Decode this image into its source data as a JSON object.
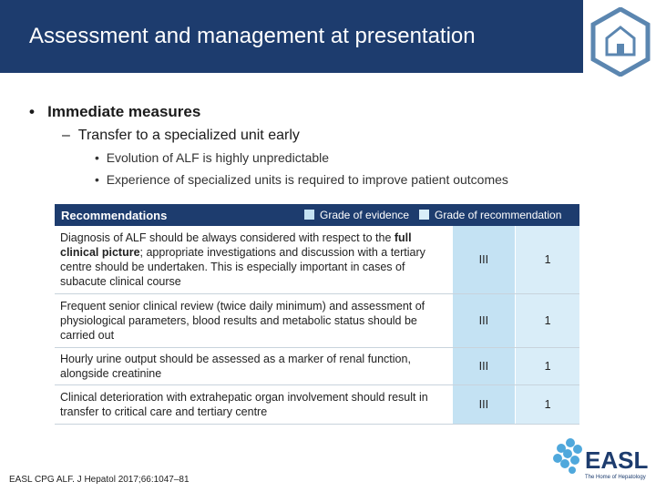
{
  "header": {
    "title": "Assessment and management at presentation"
  },
  "bullets": [
    {
      "text": "Immediate measures",
      "children": [
        {
          "text": "Transfer to a specialized unit early",
          "children": [
            "Evolution of ALF is highly unpredictable",
            "Experience of specialized units is required to improve patient outcomes"
          ]
        }
      ]
    }
  ],
  "table": {
    "header": "Recommendations",
    "legend": [
      "Grade of evidence",
      "Grade of recommendation"
    ],
    "rows": [
      {
        "text": [
          "Diagnosis of ALF should be always considered with respect to the ",
          "full clinical picture",
          "; appropriate investigations and discussion with a tertiary centre should be undertaken. This is especially important in cases of subacute clinical course"
        ],
        "evidence": "III",
        "recommendation": "1"
      },
      {
        "text": [
          "Frequent senior clinical review (twice daily minimum) and assessment of physiological parameters, blood results and metabolic status should be carried out"
        ],
        "evidence": "III",
        "recommendation": "1"
      },
      {
        "text": [
          "Hourly urine output should be assessed as a marker of renal function, alongside creatinine"
        ],
        "evidence": "III",
        "recommendation": "1"
      },
      {
        "text": [
          "Clinical deterioration with extrahepatic organ involvement should result in transfer to critical care and tertiary centre"
        ],
        "evidence": "III",
        "recommendation": "1"
      }
    ]
  },
  "footer": {
    "citation": "EASL CPG ALF. J Hepatol 2017;66:1047–81",
    "logo": "EASL",
    "tagline": "The Home of Hepatology"
  }
}
